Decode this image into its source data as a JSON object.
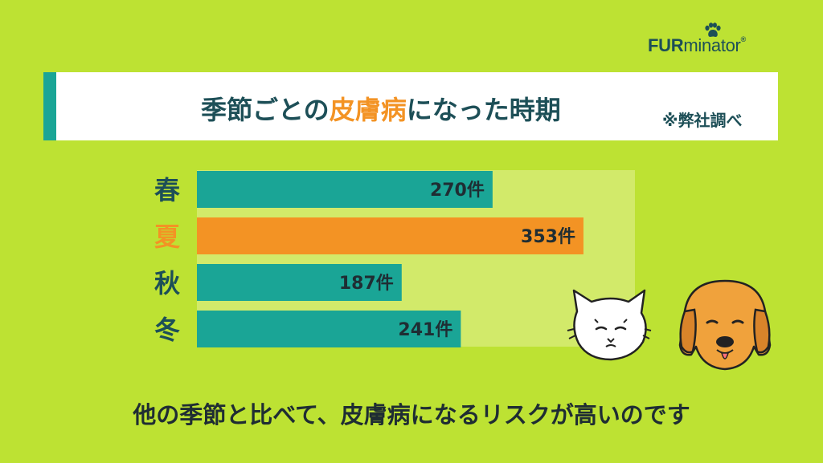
{
  "brand": {
    "logo_strong": "FUR",
    "logo_light": "minator",
    "logo_reg": "®"
  },
  "title": {
    "part1": "季節ごとの",
    "highlight": "皮膚病",
    "part2": "になった時期",
    "note": "※弊社調べ"
  },
  "caption": "他の季節と比べて、皮膚病になるリスクが高いのです",
  "colors": {
    "background": "#bde233",
    "bar_default": "#1aa596",
    "bar_highlight": "#f39324",
    "plot_bg": "#d2ea6a",
    "label_default": "#1d4f57",
    "label_highlight": "#f39324"
  },
  "icons": [
    "paw-icon",
    "cat-illustration",
    "dog-illustration"
  ],
  "chart_data": {
    "type": "bar",
    "orientation": "horizontal",
    "categories": [
      "春",
      "夏",
      "秋",
      "冬"
    ],
    "values": [
      270,
      353,
      187,
      241
    ],
    "value_labels": [
      "270件",
      "353件",
      "187件",
      "241件"
    ],
    "highlight_category": "夏",
    "xlim": [
      0,
      400
    ],
    "grid": false,
    "legend": "none"
  }
}
